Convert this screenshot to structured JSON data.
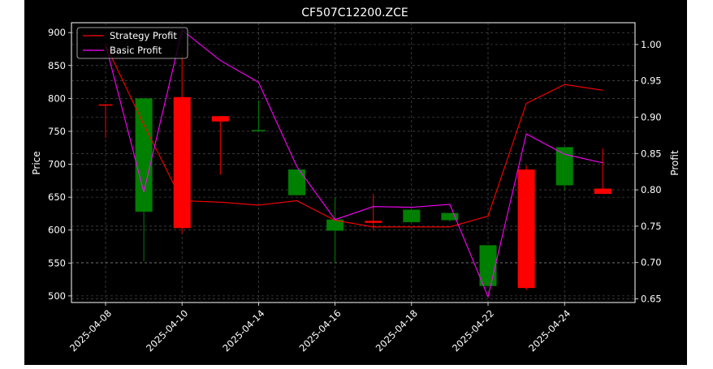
{
  "chart_data": {
    "type": "candlestick",
    "title": "CF507C12200.ZCE",
    "xlabel": "",
    "ylabel_left": "Price",
    "ylabel_right": "Profit",
    "ylim_left": [
      490,
      915
    ],
    "ylim_right": [
      0.645,
      1.03
    ],
    "yticks_left": [
      500,
      550,
      600,
      650,
      700,
      750,
      800,
      850,
      900
    ],
    "yticks_right": [
      0.65,
      0.7,
      0.75,
      0.8,
      0.85,
      0.9,
      0.95,
      1.0
    ],
    "ytick_labels_right": [
      "0.65",
      "0.70",
      "0.75",
      "0.80",
      "0.85",
      "0.90",
      "0.95",
      "1.00"
    ],
    "x_tick_labels": [
      "2025-04-08",
      "2025-04-10",
      "2025-04-14",
      "2025-04-16",
      "2025-04-18",
      "2025-04-22",
      "2025-04-24"
    ],
    "x_tick_positions": [
      0,
      2,
      4,
      6,
      8,
      10,
      12
    ],
    "grid": true,
    "legend_position": "top-left",
    "candles": [
      {
        "open": 790,
        "close": 790,
        "high": 790,
        "low": 740,
        "color": "#ff0000"
      },
      {
        "open": 628,
        "close": 800,
        "high": 800,
        "low": 553,
        "color": "#008000"
      },
      {
        "open": 802,
        "close": 603,
        "high": 868,
        "low": 595,
        "color": "#ff0000"
      },
      {
        "open": 773,
        "close": 765,
        "high": 773,
        "low": 684,
        "color": "#ff0000"
      },
      {
        "open": 750,
        "close": 751,
        "high": 797,
        "low": 750,
        "color": "#008000"
      },
      {
        "open": 653,
        "close": 692,
        "high": 692,
        "low": 653,
        "color": "#008000"
      },
      {
        "open": 599,
        "close": 616,
        "high": 650,
        "low": 550,
        "color": "#008000"
      },
      {
        "open": 614,
        "close": 611,
        "high": 655,
        "low": 600,
        "color": "#ff0000"
      },
      {
        "open": 612,
        "close": 631,
        "high": 631,
        "low": 612,
        "color": "#008000"
      },
      {
        "open": 615,
        "close": 626,
        "high": 626,
        "low": 613,
        "color": "#008000"
      },
      {
        "open": 515,
        "close": 577,
        "high": 577,
        "low": 515,
        "color": "#008000"
      },
      {
        "open": 692,
        "close": 512,
        "high": 698,
        "low": 509,
        "color": "#ff0000"
      },
      {
        "open": 668,
        "close": 726,
        "high": 726,
        "low": 660,
        "color": "#008000"
      },
      {
        "open": 663,
        "close": 655,
        "high": 724,
        "low": 655,
        "color": "#ff0000"
      }
    ],
    "series": [
      {
        "name": "Strategy Profit",
        "color": "#ff0000",
        "values": [
          1.0,
          0.89,
          0.785,
          0.783,
          0.779,
          0.785,
          0.758,
          0.749,
          0.749,
          0.749,
          0.764,
          0.919,
          0.945,
          0.937
        ]
      },
      {
        "name": "Basic Profit",
        "color": "#ff00ff",
        "values": [
          1.0,
          0.797,
          1.02,
          0.978,
          0.948,
          0.832,
          0.759,
          0.777,
          0.776,
          0.78,
          0.653,
          0.877,
          0.849,
          0.837
        ]
      }
    ]
  }
}
